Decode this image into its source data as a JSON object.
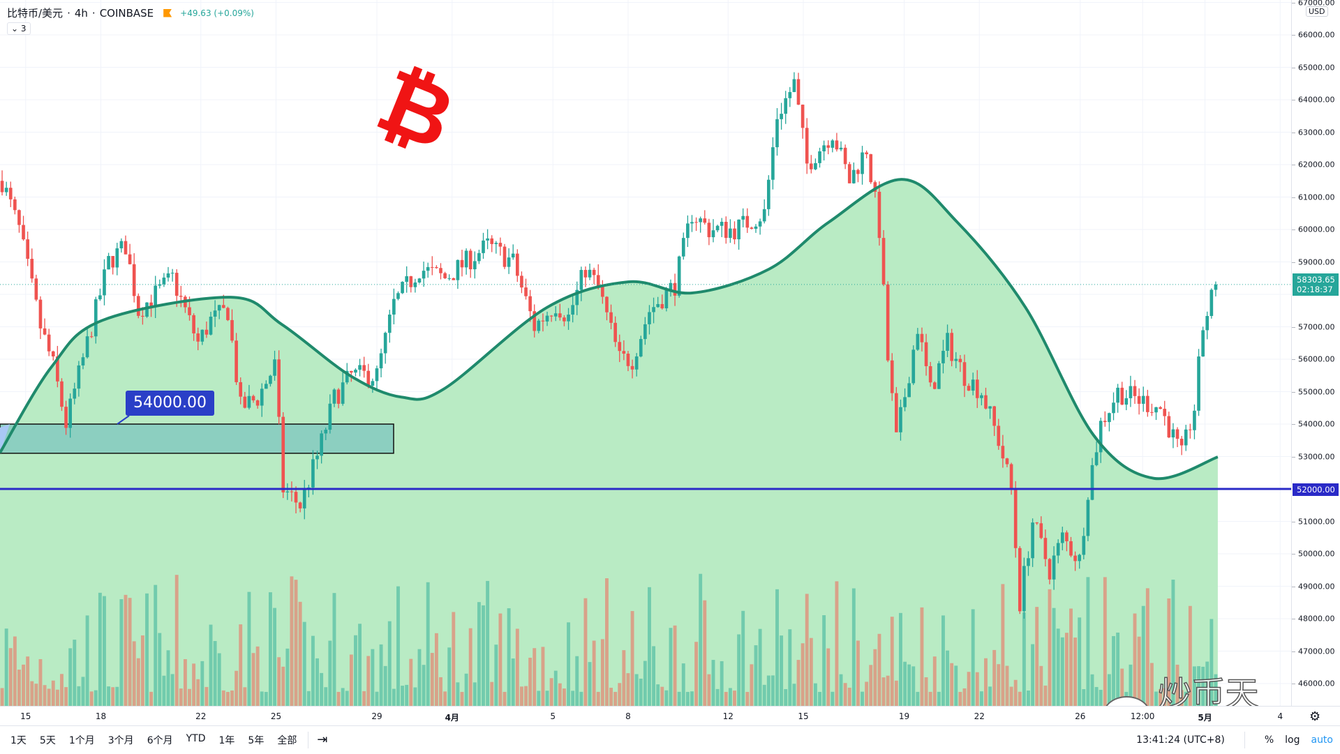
{
  "header": {
    "symbol": "比特币/美元",
    "dot1": "·",
    "interval": "4h",
    "dot2": "·",
    "exchange": "COINBASE",
    "change": "+49.63 (+0.09%)",
    "collapse": "⌄ 3"
  },
  "y_axis": {
    "currency": "USD",
    "labels": [
      "67000.00",
      "66000.00",
      "65000.00",
      "64000.00",
      "63000.00",
      "62000.00",
      "61000.00",
      "60000.00",
      "59000.00",
      "57000.00",
      "56000.00",
      "55000.00",
      "54000.00",
      "53000.00",
      "51000.00",
      "50000.00",
      "49000.00",
      "48000.00",
      "47000.00",
      "46000.00"
    ],
    "last_price": "58303.65",
    "countdown": "02:18:37",
    "line_price": "52000.00"
  },
  "x_axis": {
    "labels": [
      "15",
      "18",
      "22",
      "25",
      "29",
      "4月",
      "5",
      "8",
      "12",
      "15",
      "19",
      "22",
      "26",
      "12:00",
      "5月",
      "4"
    ]
  },
  "annotations": {
    "box_label": "54000.00",
    "logo": "₿",
    "watermark": "炒币天王"
  },
  "bottom_bar": {
    "ranges": [
      "1天",
      "5天",
      "1个月",
      "3个月",
      "6个月",
      "YTD",
      "1年",
      "5年",
      "全部"
    ],
    "goto": "⇥",
    "time": "13:41:24 (UTC+8)",
    "percent": "%",
    "log": "log",
    "auto": "auto"
  },
  "colors": {
    "up": "#26a69a",
    "down": "#ef5350",
    "area": "#b9ebc4",
    "curve": "#1f8a6c",
    "hline": "#2a2ac7"
  },
  "chart_data": {
    "type": "candlestick",
    "symbol": "BTC/USD",
    "interval": "4h",
    "ylim": [
      45700,
      67000
    ],
    "candle_count": 286,
    "price_path": [
      [
        0,
        61500
      ],
      [
        4,
        60000
      ],
      [
        9,
        57000
      ],
      [
        12,
        55800
      ],
      [
        15,
        54000
      ],
      [
        20,
        56500
      ],
      [
        25,
        59000
      ],
      [
        29,
        59500
      ],
      [
        32,
        57500
      ],
      [
        40,
        58500
      ],
      [
        46,
        56500
      ],
      [
        49,
        57200
      ],
      [
        53,
        57500
      ],
      [
        56,
        54500
      ],
      [
        60,
        54800
      ],
      [
        64,
        55800
      ],
      [
        66,
        52000
      ],
      [
        70,
        51500
      ],
      [
        74,
        53000
      ],
      [
        78,
        54800
      ],
      [
        82,
        55500
      ],
      [
        88,
        55500
      ],
      [
        92,
        57700
      ],
      [
        98,
        58800
      ],
      [
        104,
        58500
      ],
      [
        114,
        59500
      ],
      [
        120,
        59000
      ],
      [
        125,
        57000
      ],
      [
        130,
        57700
      ],
      [
        133,
        57300
      ],
      [
        137,
        58800
      ],
      [
        140,
        58200
      ],
      [
        145,
        56000
      ],
      [
        148,
        56000
      ],
      [
        152,
        57500
      ],
      [
        158,
        58300
      ],
      [
        162,
        60500
      ],
      [
        166,
        60000
      ],
      [
        172,
        60000
      ],
      [
        179,
        60500
      ],
      [
        182,
        63500
      ],
      [
        186,
        64500
      ],
      [
        189,
        62000
      ],
      [
        195,
        63000
      ],
      [
        199,
        61500
      ],
      [
        203,
        62500
      ],
      [
        206,
        60000
      ],
      [
        208,
        56000
      ],
      [
        210,
        53500
      ],
      [
        215,
        57000
      ],
      [
        218,
        55000
      ],
      [
        222,
        56500
      ],
      [
        226,
        55500
      ],
      [
        230,
        55000
      ],
      [
        234,
        53500
      ],
      [
        237,
        52000
      ],
      [
        239,
        48500
      ],
      [
        242,
        51000
      ],
      [
        246,
        49500
      ],
      [
        249,
        50500
      ],
      [
        253,
        49800
      ],
      [
        255,
        52000
      ],
      [
        258,
        54000
      ],
      [
        262,
        55000
      ],
      [
        266,
        54800
      ],
      [
        272,
        54500
      ],
      [
        277,
        53000
      ],
      [
        280,
        54500
      ],
      [
        282,
        57000
      ],
      [
        285,
        58303.65
      ]
    ],
    "last": 58303.65,
    "horizontal_line": 52000,
    "box_range": [
      53100,
      54000
    ]
  }
}
